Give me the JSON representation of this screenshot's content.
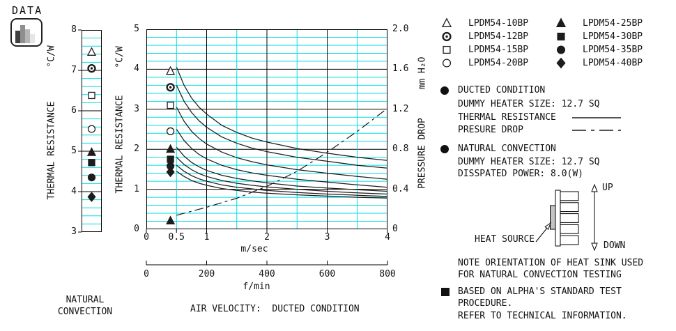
{
  "logo": {
    "text": "DATA"
  },
  "colors": {
    "grid": "#00DEE3",
    "line": "#1c1c1c",
    "text": "#111111",
    "heat_source_fill": "#c4c4c4"
  },
  "legend": {
    "items": [
      {
        "model": "LPDM54-10BP",
        "shape": "triangle-open"
      },
      {
        "model": "LPDM54-12BP",
        "shape": "circle-dot"
      },
      {
        "model": "LPDM54-15BP",
        "shape": "square-open"
      },
      {
        "model": "LPDM54-20BP",
        "shape": "circle-open"
      },
      {
        "model": "LPDM54-25BP",
        "shape": "triangle-filled"
      },
      {
        "model": "LPDM54-30BP",
        "shape": "square-filled"
      },
      {
        "model": "LPDM54-35BP",
        "shape": "circle-filled"
      },
      {
        "model": "LPDM54-40BP",
        "shape": "diamond-filled"
      }
    ]
  },
  "info": {
    "ducted": {
      "title": "DUCTED CONDITION",
      "dummy_heater": "DUMMY HEATER SIZE: 12.7 SQ",
      "thermal_label": "THERMAL RESISTANCE",
      "pressure_label": "PRESURE DROP"
    },
    "natural": {
      "title": "NATURAL CONVECTION",
      "dummy_heater": "DUMMY HEATER SIZE: 12.7 SQ",
      "dissipated_power": "DISSPATED POWER: 8.0(W)"
    }
  },
  "diagram": {
    "heat_source_label": "HEAT SOURCE",
    "up_label": "UP",
    "down_label": "DOWN"
  },
  "notes": {
    "orientation": [
      "NOTE ORIENTATION OF HEAT SINK USED",
      "FOR NATURAL CONVECTION TESTING"
    ],
    "based": {
      "lines": [
        "BASED ON ALPHA'S STANDARD TEST",
        "PROCEDURE.",
        "REFER TO TECHNICAL INFORMATION."
      ]
    }
  },
  "captions": {
    "natural_line1": "NATURAL",
    "natural_line2": "CONVECTION",
    "air_velocity": "AIR VELOCITY:  DUCTED CONDITION",
    "x_unit": "m/sec",
    "x2_unit": "f/min"
  },
  "chart_data": [
    {
      "type": "scatter",
      "title": "NATURAL CONVECTION",
      "ylabel": "THERMAL RESISTANCE",
      "y_unit": "°C/W",
      "ylim": [
        3,
        8
      ],
      "yticks": [
        3,
        4,
        5,
        6,
        7,
        8
      ],
      "minor_step": 0.2,
      "grid": true,
      "points": [
        {
          "model": "LPDM54-10BP",
          "shape": "triangle-open",
          "y": 7.45
        },
        {
          "model": "LPDM54-12BP",
          "shape": "circle-dot",
          "y": 7.05
        },
        {
          "model": "LPDM54-15BP",
          "shape": "square-open",
          "y": 6.38
        },
        {
          "model": "LPDM54-20BP",
          "shape": "circle-open",
          "y": 5.55
        },
        {
          "model": "LPDM54-25BP",
          "shape": "triangle-filled",
          "y": 4.97
        },
        {
          "model": "LPDM54-30BP",
          "shape": "square-filled",
          "y": 4.72
        },
        {
          "model": "LPDM54-35BP",
          "shape": "circle-filled",
          "y": 4.35
        },
        {
          "model": "LPDM54-40BP",
          "shape": "diamond-filled",
          "y": 3.87
        }
      ]
    },
    {
      "type": "line",
      "title": "AIR VELOCITY:  DUCTED CONDITION",
      "xlabel": "m/sec",
      "x2label": "f/min",
      "ylabel": "THERMAL RESISTANCE",
      "y_unit": "°C/W",
      "y2label": "PRESSURE DROP",
      "y2_unit": "mm H₂O",
      "xlim": [
        0,
        4
      ],
      "xticks": [
        0,
        0.5,
        1,
        2,
        3,
        4
      ],
      "x2lim": [
        0,
        800
      ],
      "x2ticks": [
        0,
        200,
        400,
        600,
        800
      ],
      "ylim": [
        0,
        5
      ],
      "yticks": [
        0,
        1,
        2,
        3,
        4,
        5
      ],
      "y2lim": [
        0,
        2
      ],
      "y2ticks": [
        "0",
        "0.4",
        "0.8",
        "1.2",
        "1.6",
        "2.0"
      ],
      "minor_step_y": 0.2,
      "minor_step_x": 0.5,
      "grid": true,
      "x_samples": [
        0.5,
        0.625,
        0.75,
        0.875,
        1,
        1.25,
        1.5,
        1.75,
        2,
        2.5,
        3,
        3.5,
        4
      ],
      "series": [
        {
          "name": "LPDM54-10BP",
          "shape": "triangle-open",
          "marker_at": {
            "x": 0.4,
            "y": 3.95
          },
          "values": [
            4.05,
            3.6,
            3.28,
            3.05,
            2.88,
            2.6,
            2.42,
            2.28,
            2.18,
            2.02,
            1.9,
            1.8,
            1.72
          ]
        },
        {
          "name": "LPDM54-12BP",
          "shape": "circle-dot",
          "marker_at": {
            "x": 0.4,
            "y": 3.55
          },
          "values": [
            3.6,
            3.2,
            2.92,
            2.71,
            2.55,
            2.31,
            2.15,
            2.03,
            1.94,
            1.8,
            1.7,
            1.6,
            1.53
          ]
        },
        {
          "name": "LPDM54-15BP",
          "shape": "square-open",
          "marker_at": {
            "x": 0.4,
            "y": 3.1
          },
          "values": [
            3.05,
            2.7,
            2.45,
            2.27,
            2.13,
            1.93,
            1.79,
            1.69,
            1.61,
            1.49,
            1.4,
            1.32,
            1.25
          ]
        },
        {
          "name": "LPDM54-20BP",
          "shape": "circle-open",
          "marker_at": {
            "x": 0.4,
            "y": 2.45
          },
          "values": [
            2.5,
            2.22,
            2.02,
            1.87,
            1.76,
            1.6,
            1.49,
            1.41,
            1.35,
            1.25,
            1.18,
            1.11,
            1.05
          ]
        },
        {
          "name": "LPDM54-25BP",
          "shape": "triangle-filled",
          "marker_at": {
            "x": 0.4,
            "y": 2.0
          },
          "values": [
            2.05,
            1.83,
            1.67,
            1.56,
            1.47,
            1.35,
            1.27,
            1.21,
            1.16,
            1.08,
            1.03,
            0.99,
            0.95
          ]
        },
        {
          "name": "LPDM54-30BP",
          "shape": "square-filled",
          "marker_at": {
            "x": 0.4,
            "y": 1.75
          },
          "values": [
            1.8,
            1.62,
            1.49,
            1.39,
            1.32,
            1.22,
            1.15,
            1.1,
            1.06,
            1.0,
            0.95,
            0.91,
            0.88
          ]
        },
        {
          "name": "LPDM54-35BP",
          "shape": "circle-filled",
          "marker_at": {
            "x": 0.4,
            "y": 1.58
          },
          "values": [
            1.6,
            1.45,
            1.34,
            1.26,
            1.2,
            1.11,
            1.05,
            1.01,
            0.97,
            0.92,
            0.88,
            0.85,
            0.82
          ]
        },
        {
          "name": "LPDM54-40BP",
          "shape": "diamond-filled",
          "marker_at": {
            "x": 0.4,
            "y": 1.43
          },
          "values": [
            1.45,
            1.32,
            1.22,
            1.15,
            1.1,
            1.02,
            0.97,
            0.93,
            0.9,
            0.86,
            0.83,
            0.8,
            0.78
          ]
        }
      ],
      "pressure_drop": {
        "name": "PRESURE DROP",
        "axis": "y2",
        "style": "dash-dot",
        "x": [
          0.5,
          1,
          1.5,
          2,
          2.5,
          3,
          3.5,
          4
        ],
        "values": [
          0.14,
          0.22,
          0.31,
          0.43,
          0.58,
          0.77,
          0.98,
          1.21
        ]
      },
      "extra_markers": [
        {
          "shape": "triangle-filled",
          "x": 0.4,
          "y": 0.21
        }
      ]
    }
  ]
}
